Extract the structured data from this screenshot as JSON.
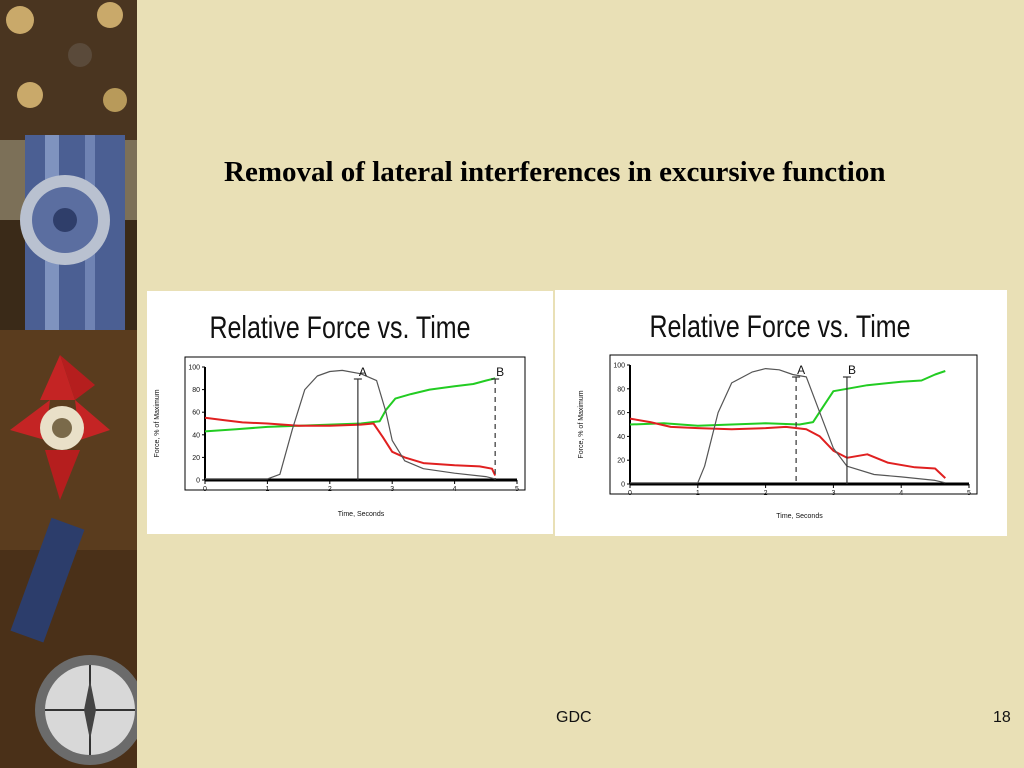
{
  "slide": {
    "title": "Removal of lateral interferences in excursive function",
    "footer_center": "GDC",
    "page_number": "18"
  },
  "colors": {
    "background": "#e9e0b6",
    "series_green": "#22cc22",
    "series_red": "#e02020",
    "series_gray": "#555555"
  },
  "chart_data": [
    {
      "type": "line",
      "title": "Relative Force vs. Time",
      "xlabel": "Time, Seconds",
      "ylabel": "Force, % of Maximum",
      "xlim": [
        0,
        5
      ],
      "ylim": [
        0,
        100
      ],
      "xticks": [
        "0",
        "1",
        "2",
        "3",
        "4",
        "5"
      ],
      "yticks": [
        "0",
        "20",
        "40",
        "60",
        "80",
        "100"
      ],
      "markers": [
        {
          "label": "A",
          "x": 2.45,
          "style": "solid"
        },
        {
          "label": "B",
          "x": 4.65,
          "style": "dashed"
        }
      ],
      "series": [
        {
          "color": "green",
          "points": [
            [
              0,
              43
            ],
            [
              0.5,
              45
            ],
            [
              1,
              47
            ],
            [
              1.5,
              48
            ],
            [
              2,
              49
            ],
            [
              2.5,
              50
            ],
            [
              2.8,
              52
            ],
            [
              2.9,
              62
            ],
            [
              3.05,
              72
            ],
            [
              3.3,
              76
            ],
            [
              3.6,
              80
            ],
            [
              4,
              83
            ],
            [
              4.3,
              85
            ],
            [
              4.5,
              88
            ],
            [
              4.65,
              90
            ]
          ]
        },
        {
          "color": "red",
          "points": [
            [
              0,
              55
            ],
            [
              0.3,
              53
            ],
            [
              0.6,
              51
            ],
            [
              1,
              50
            ],
            [
              1.5,
              48
            ],
            [
              2,
              48
            ],
            [
              2.5,
              49
            ],
            [
              2.7,
              50
            ],
            [
              2.85,
              38
            ],
            [
              3,
              25
            ],
            [
              3.2,
              20
            ],
            [
              3.5,
              15
            ],
            [
              4,
              13
            ],
            [
              4.4,
              12
            ],
            [
              4.6,
              10
            ],
            [
              4.65,
              4
            ]
          ]
        },
        {
          "color": "gray",
          "points": [
            [
              0,
              1
            ],
            [
              1,
              1
            ],
            [
              1.2,
              5
            ],
            [
              1.4,
              45
            ],
            [
              1.6,
              80
            ],
            [
              1.8,
              92
            ],
            [
              2,
              96
            ],
            [
              2.2,
              97
            ],
            [
              2.5,
              94
            ],
            [
              2.75,
              88
            ],
            [
              2.9,
              60
            ],
            [
              3,
              35
            ],
            [
              3.2,
              17
            ],
            [
              3.5,
              10
            ],
            [
              4,
              6
            ],
            [
              4.5,
              3
            ],
            [
              4.65,
              1
            ]
          ]
        }
      ]
    },
    {
      "type": "line",
      "title": "Relative Force vs. Time",
      "xlabel": "Time, Seconds",
      "ylabel": "Force, % of Maximum",
      "xlim": [
        0,
        5
      ],
      "ylim": [
        0,
        100
      ],
      "xticks": [
        "0",
        "1",
        "2",
        "3",
        "4",
        "5"
      ],
      "yticks": [
        "0",
        "20",
        "40",
        "60",
        "80",
        "100"
      ],
      "markers": [
        {
          "label": "A",
          "x": 2.45,
          "style": "dashed"
        },
        {
          "label": "B",
          "x": 3.2,
          "style": "solid"
        }
      ],
      "series": [
        {
          "color": "green",
          "points": [
            [
              0,
              50
            ],
            [
              0.5,
              51
            ],
            [
              1,
              49
            ],
            [
              1.5,
              50
            ],
            [
              2,
              51
            ],
            [
              2.5,
              50
            ],
            [
              2.7,
              52
            ],
            [
              2.85,
              65
            ],
            [
              3,
              78
            ],
            [
              3.2,
              80
            ],
            [
              3.5,
              83
            ],
            [
              4,
              86
            ],
            [
              4.3,
              87
            ],
            [
              4.5,
              92
            ],
            [
              4.65,
              95
            ]
          ]
        },
        {
          "color": "red",
          "points": [
            [
              0,
              55
            ],
            [
              0.3,
              52
            ],
            [
              0.6,
              48
            ],
            [
              1,
              47
            ],
            [
              1.5,
              46
            ],
            [
              2,
              47
            ],
            [
              2.3,
              48
            ],
            [
              2.6,
              46
            ],
            [
              2.8,
              40
            ],
            [
              3,
              28
            ],
            [
              3.2,
              22
            ],
            [
              3.5,
              25
            ],
            [
              3.8,
              18
            ],
            [
              4.2,
              14
            ],
            [
              4.5,
              13
            ],
            [
              4.65,
              5
            ]
          ]
        },
        {
          "color": "gray",
          "points": [
            [
              0,
              1
            ],
            [
              1,
              1
            ],
            [
              1.1,
              15
            ],
            [
              1.3,
              60
            ],
            [
              1.5,
              85
            ],
            [
              1.8,
              94
            ],
            [
              2,
              97
            ],
            [
              2.2,
              96
            ],
            [
              2.4,
              92
            ],
            [
              2.6,
              90
            ],
            [
              2.8,
              60
            ],
            [
              3,
              30
            ],
            [
              3.2,
              15
            ],
            [
              3.6,
              8
            ],
            [
              4,
              6
            ],
            [
              4.5,
              3
            ],
            [
              4.65,
              1
            ]
          ]
        }
      ]
    }
  ]
}
